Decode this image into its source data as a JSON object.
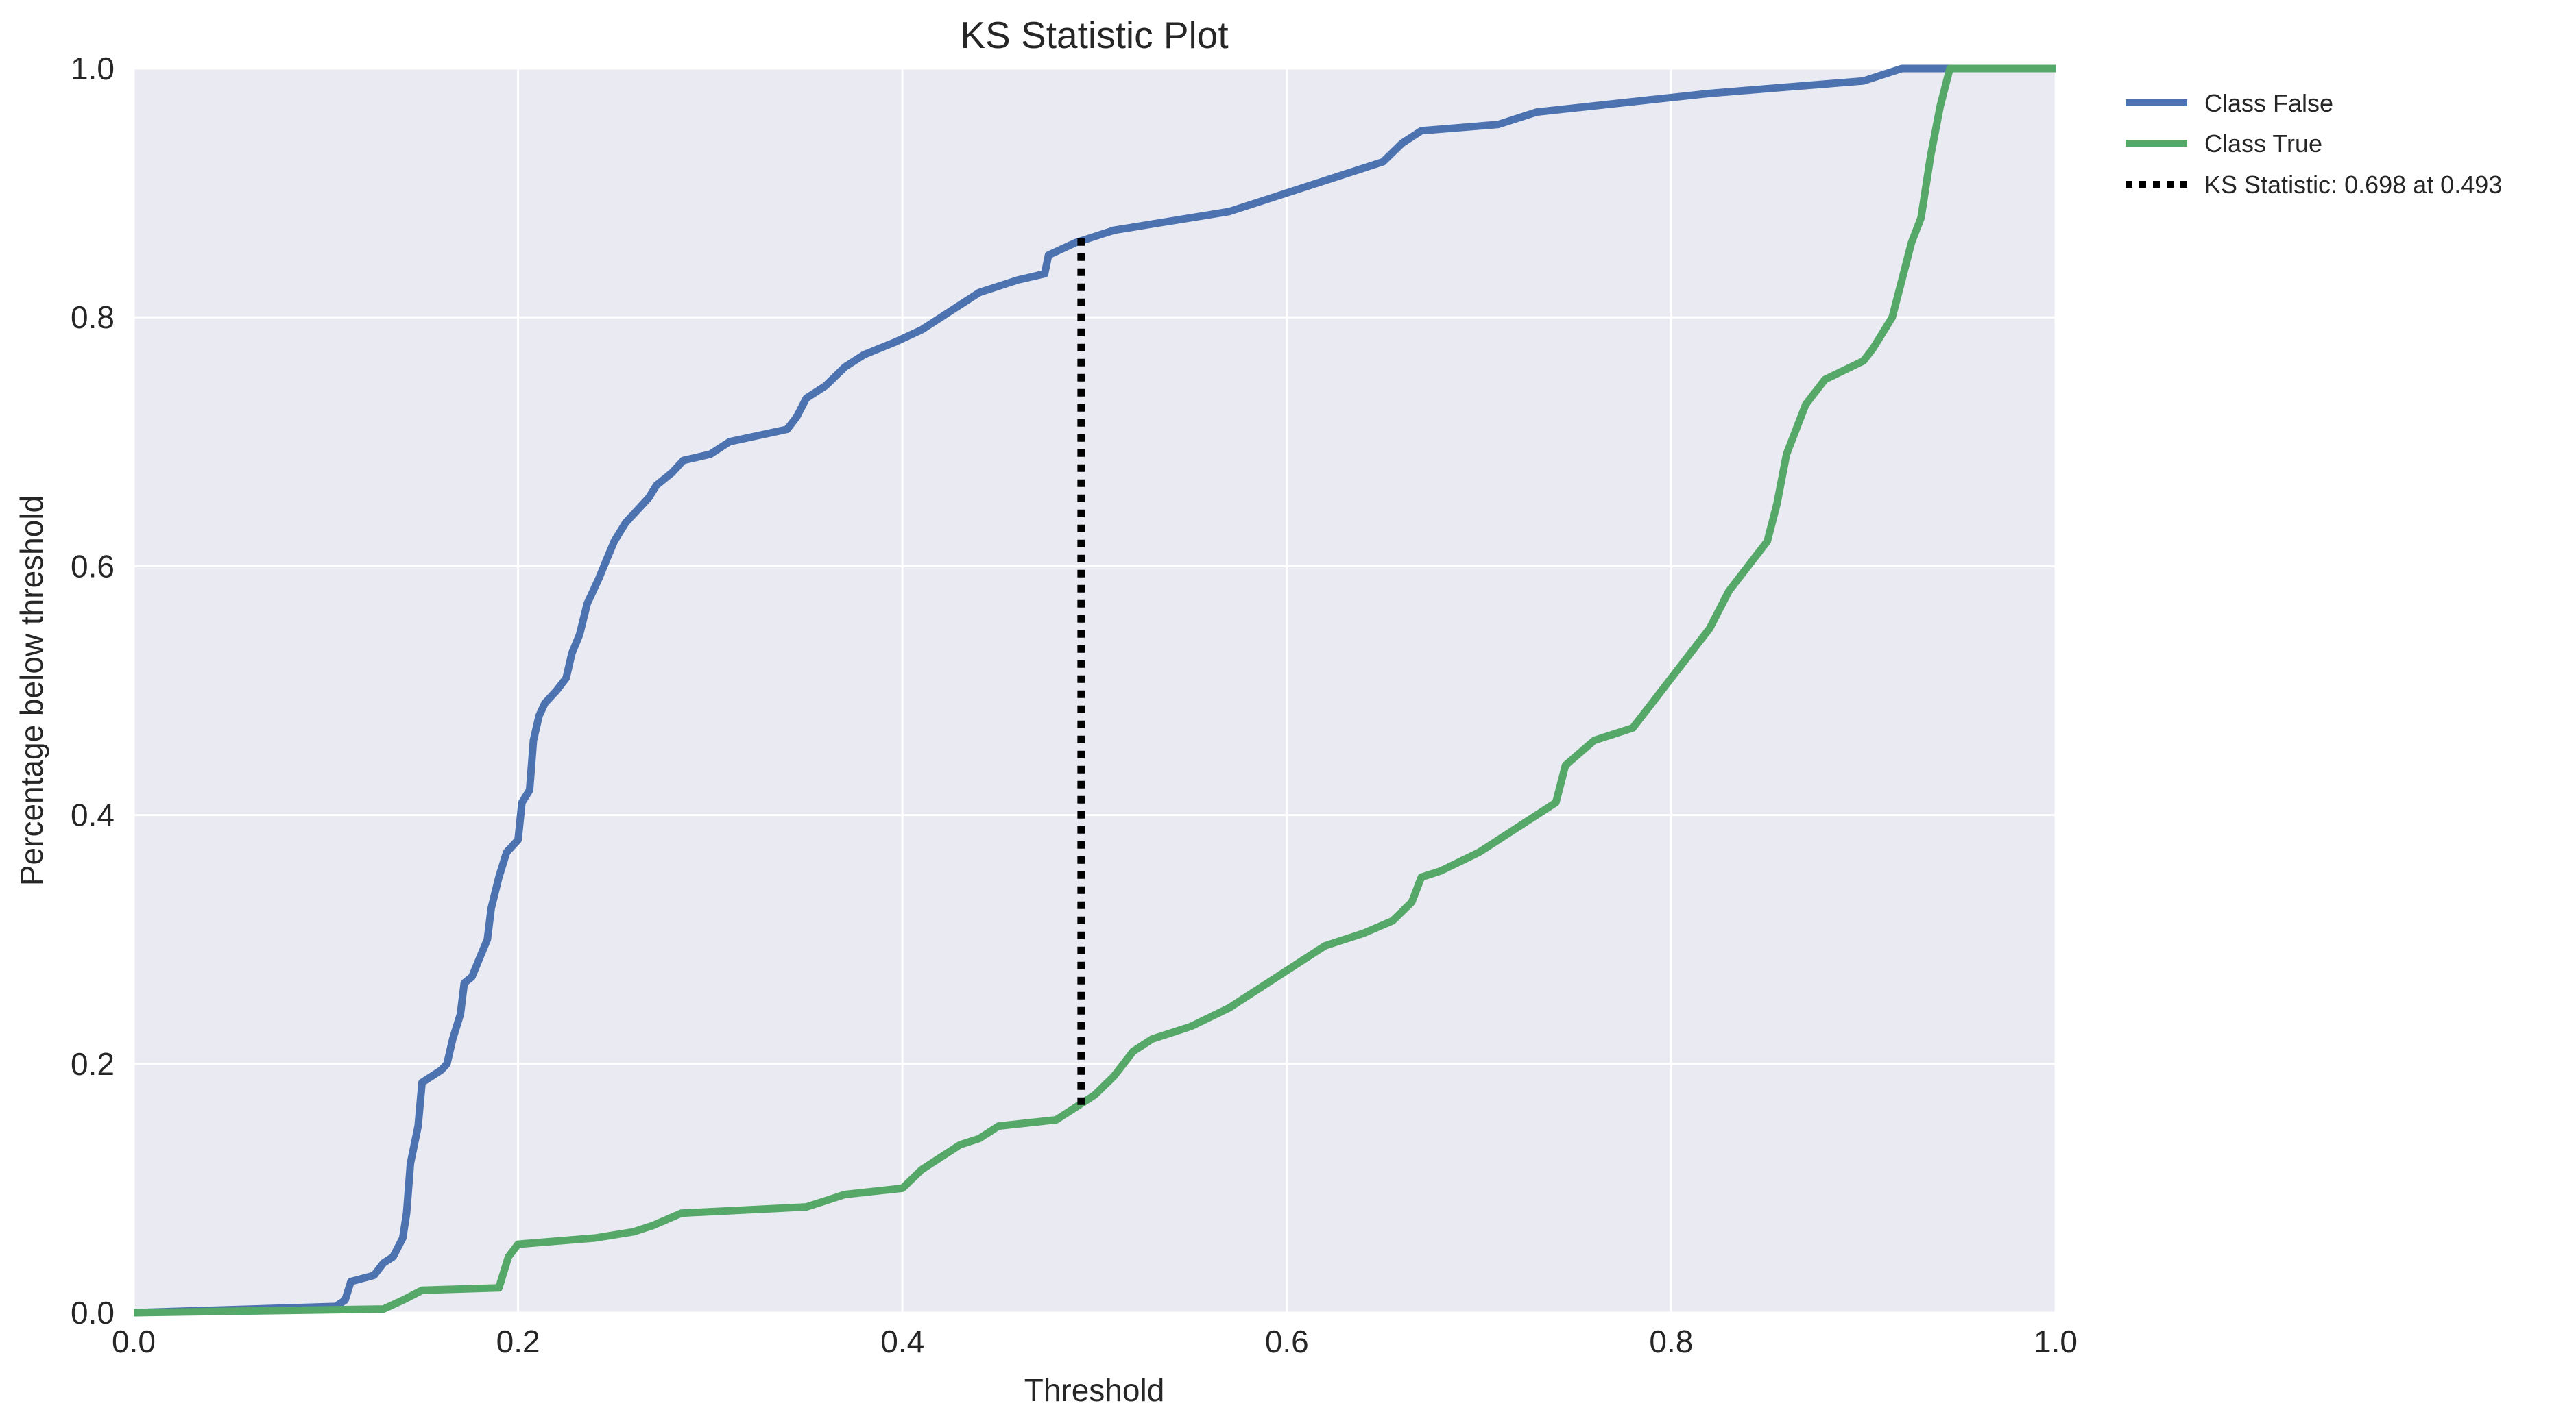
{
  "chart_data": {
    "type": "line",
    "title": "KS Statistic Plot",
    "xlabel": "Threshold",
    "ylabel": "Percentage below threshold",
    "xlim": [
      0.0,
      1.0
    ],
    "ylim": [
      0.0,
      1.0
    ],
    "xticks": [
      "0.0",
      "0.2",
      "0.4",
      "0.6",
      "0.8",
      "1.0"
    ],
    "yticks": [
      "0.0",
      "0.2",
      "0.4",
      "0.6",
      "0.8",
      "1.0"
    ],
    "grid": true,
    "legend_position": "outside right, top",
    "series": [
      {
        "name": "Class False",
        "color": "#4C72B0",
        "points": [
          [
            0.0,
            0.0
          ],
          [
            0.105,
            0.005
          ],
          [
            0.11,
            0.01
          ],
          [
            0.113,
            0.025
          ],
          [
            0.125,
            0.03
          ],
          [
            0.13,
            0.04
          ],
          [
            0.135,
            0.045
          ],
          [
            0.14,
            0.06
          ],
          [
            0.142,
            0.08
          ],
          [
            0.144,
            0.12
          ],
          [
            0.146,
            0.135
          ],
          [
            0.148,
            0.15
          ],
          [
            0.15,
            0.185
          ],
          [
            0.155,
            0.19
          ],
          [
            0.16,
            0.195
          ],
          [
            0.163,
            0.2
          ],
          [
            0.166,
            0.22
          ],
          [
            0.17,
            0.24
          ],
          [
            0.172,
            0.265
          ],
          [
            0.176,
            0.27
          ],
          [
            0.18,
            0.285
          ],
          [
            0.184,
            0.3
          ],
          [
            0.186,
            0.325
          ],
          [
            0.19,
            0.35
          ],
          [
            0.194,
            0.37
          ],
          [
            0.2,
            0.38
          ],
          [
            0.202,
            0.41
          ],
          [
            0.206,
            0.42
          ],
          [
            0.208,
            0.46
          ],
          [
            0.211,
            0.48
          ],
          [
            0.214,
            0.49
          ],
          [
            0.22,
            0.5
          ],
          [
            0.225,
            0.51
          ],
          [
            0.228,
            0.53
          ],
          [
            0.232,
            0.545
          ],
          [
            0.236,
            0.57
          ],
          [
            0.242,
            0.59
          ],
          [
            0.246,
            0.605
          ],
          [
            0.25,
            0.62
          ],
          [
            0.256,
            0.635
          ],
          [
            0.262,
            0.645
          ],
          [
            0.268,
            0.655
          ],
          [
            0.272,
            0.665
          ],
          [
            0.28,
            0.675
          ],
          [
            0.286,
            0.685
          ],
          [
            0.3,
            0.69
          ],
          [
            0.31,
            0.7
          ],
          [
            0.34,
            0.71
          ],
          [
            0.345,
            0.72
          ],
          [
            0.35,
            0.735
          ],
          [
            0.36,
            0.745
          ],
          [
            0.37,
            0.76
          ],
          [
            0.38,
            0.77
          ],
          [
            0.396,
            0.78
          ],
          [
            0.41,
            0.79
          ],
          [
            0.42,
            0.8
          ],
          [
            0.43,
            0.81
          ],
          [
            0.44,
            0.82
          ],
          [
            0.46,
            0.83
          ],
          [
            0.474,
            0.835
          ],
          [
            0.476,
            0.85
          ],
          [
            0.49,
            0.86
          ],
          [
            0.5,
            0.865
          ],
          [
            0.51,
            0.87
          ],
          [
            0.53,
            0.875
          ],
          [
            0.55,
            0.88
          ],
          [
            0.57,
            0.885
          ],
          [
            0.59,
            0.895
          ],
          [
            0.61,
            0.905
          ],
          [
            0.63,
            0.915
          ],
          [
            0.65,
            0.925
          ],
          [
            0.66,
            0.94
          ],
          [
            0.67,
            0.95
          ],
          [
            0.71,
            0.955
          ],
          [
            0.73,
            0.965
          ],
          [
            0.76,
            0.97
          ],
          [
            0.79,
            0.975
          ],
          [
            0.82,
            0.98
          ],
          [
            0.86,
            0.985
          ],
          [
            0.9,
            0.99
          ],
          [
            0.92,
            1.0
          ],
          [
            1.0,
            1.0
          ]
        ]
      },
      {
        "name": "Class True",
        "color": "#55A868",
        "points": [
          [
            0.0,
            0.0
          ],
          [
            0.13,
            0.003
          ],
          [
            0.14,
            0.01
          ],
          [
            0.15,
            0.018
          ],
          [
            0.19,
            0.02
          ],
          [
            0.195,
            0.045
          ],
          [
            0.2,
            0.055
          ],
          [
            0.24,
            0.06
          ],
          [
            0.26,
            0.065
          ],
          [
            0.27,
            0.07
          ],
          [
            0.285,
            0.08
          ],
          [
            0.35,
            0.085
          ],
          [
            0.36,
            0.09
          ],
          [
            0.37,
            0.095
          ],
          [
            0.4,
            0.1
          ],
          [
            0.41,
            0.115
          ],
          [
            0.42,
            0.125
          ],
          [
            0.43,
            0.135
          ],
          [
            0.44,
            0.14
          ],
          [
            0.45,
            0.15
          ],
          [
            0.48,
            0.155
          ],
          [
            0.49,
            0.165
          ],
          [
            0.5,
            0.175
          ],
          [
            0.51,
            0.19
          ],
          [
            0.52,
            0.21
          ],
          [
            0.53,
            0.22
          ],
          [
            0.55,
            0.23
          ],
          [
            0.57,
            0.245
          ],
          [
            0.59,
            0.265
          ],
          [
            0.61,
            0.285
          ],
          [
            0.62,
            0.295
          ],
          [
            0.64,
            0.305
          ],
          [
            0.655,
            0.315
          ],
          [
            0.665,
            0.33
          ],
          [
            0.67,
            0.35
          ],
          [
            0.68,
            0.355
          ],
          [
            0.7,
            0.37
          ],
          [
            0.72,
            0.39
          ],
          [
            0.74,
            0.41
          ],
          [
            0.745,
            0.44
          ],
          [
            0.76,
            0.46
          ],
          [
            0.78,
            0.47
          ],
          [
            0.79,
            0.49
          ],
          [
            0.8,
            0.51
          ],
          [
            0.81,
            0.53
          ],
          [
            0.82,
            0.55
          ],
          [
            0.83,
            0.58
          ],
          [
            0.84,
            0.6
          ],
          [
            0.85,
            0.62
          ],
          [
            0.855,
            0.65
          ],
          [
            0.86,
            0.69
          ],
          [
            0.865,
            0.71
          ],
          [
            0.87,
            0.73
          ],
          [
            0.88,
            0.75
          ],
          [
            0.9,
            0.765
          ],
          [
            0.905,
            0.775
          ],
          [
            0.915,
            0.8
          ],
          [
            0.92,
            0.83
          ],
          [
            0.925,
            0.86
          ],
          [
            0.93,
            0.88
          ],
          [
            0.935,
            0.93
          ],
          [
            0.94,
            0.97
          ],
          [
            0.945,
            1.0
          ],
          [
            1.0,
            1.0
          ]
        ]
      }
    ],
    "ks_statistic": {
      "label": "KS Statistic: 0.698 at 0.493",
      "threshold": 0.493,
      "y_low": 0.167,
      "y_high": 0.865,
      "color": "#000000",
      "style": "dotted"
    }
  }
}
